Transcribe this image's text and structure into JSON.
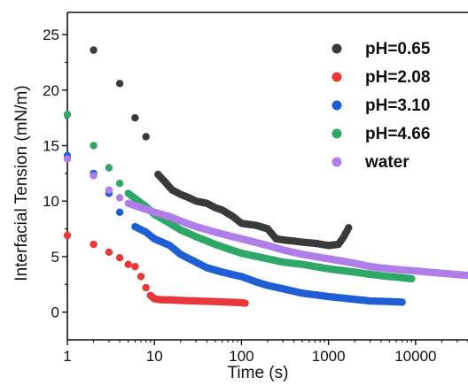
{
  "chart_data": {
    "type": "scatter",
    "title": "",
    "xlabel": "Time (s)",
    "ylabel": "Interfacial Tension (mN/m)",
    "xscale": "log",
    "xlim": [
      1,
      40000
    ],
    "ylim": [
      -2.5,
      27
    ],
    "x_ticks": [
      1,
      10,
      100,
      1000,
      10000
    ],
    "x_tick_labels": [
      "1",
      "10",
      "100",
      "1000",
      "10000"
    ],
    "y_ticks": [
      0,
      5,
      10,
      15,
      20,
      25
    ],
    "y_tick_labels": [
      "0",
      "5",
      "10",
      "15",
      "20",
      "25"
    ],
    "grid": false,
    "legend_position": "top-right",
    "series": [
      {
        "name": "pH=0.65",
        "color": "#3a3a3a",
        "x": [
          2,
          4,
          6,
          8,
          11,
          13,
          16,
          20,
          25,
          30,
          40,
          50,
          60,
          80,
          100,
          150,
          200,
          250,
          300,
          400,
          500,
          700,
          1000,
          1300,
          1500,
          1700
        ],
        "y": [
          23.6,
          20.6,
          17.5,
          15.8,
          12.4,
          11.8,
          11.0,
          10.6,
          10.3,
          10.0,
          9.8,
          9.4,
          9.2,
          8.6,
          8.0,
          7.8,
          7.5,
          6.6,
          6.5,
          6.4,
          6.3,
          6.2,
          6.0,
          6.1,
          6.8,
          7.6
        ]
      },
      {
        "name": "pH=2.08",
        "color": "#e8383a",
        "x": [
          1,
          2,
          3,
          4,
          5,
          6,
          7,
          8,
          9,
          10,
          12,
          15,
          20,
          30,
          50,
          70,
          100,
          110
        ],
        "y": [
          6.9,
          6.1,
          5.4,
          4.9,
          4.3,
          4.1,
          3.2,
          2.2,
          1.5,
          1.2,
          1.1,
          1.1,
          1.05,
          1.0,
          0.95,
          0.9,
          0.85,
          0.8
        ]
      },
      {
        "name": "pH=3.10",
        "color": "#1f5fd6",
        "x": [
          1,
          2,
          3,
          4,
          6,
          8,
          10,
          15,
          20,
          30,
          40,
          60,
          100,
          150,
          200,
          300,
          500,
          1000,
          2000,
          3000,
          5000,
          7000
        ],
        "y": [
          14.1,
          12.5,
          10.7,
          9.0,
          7.7,
          7.2,
          6.6,
          6.0,
          5.2,
          4.5,
          4.0,
          3.6,
          3.2,
          2.7,
          2.4,
          2.1,
          1.7,
          1.4,
          1.15,
          1.0,
          0.95,
          0.9
        ]
      },
      {
        "name": "pH=4.66",
        "color": "#2ea866",
        "x": [
          1,
          2,
          3,
          4,
          5,
          8,
          10,
          15,
          20,
          30,
          50,
          70,
          100,
          200,
          300,
          500,
          1000,
          2000,
          3000,
          5000,
          7000,
          9000
        ],
        "y": [
          17.8,
          15.0,
          13.0,
          11.6,
          10.7,
          9.5,
          8.8,
          8.0,
          7.4,
          6.8,
          6.1,
          5.7,
          5.3,
          4.8,
          4.5,
          4.3,
          3.9,
          3.6,
          3.4,
          3.2,
          3.1,
          3.0
        ]
      },
      {
        "name": "water",
        "color": "#b07ee8",
        "x": [
          1,
          2,
          3,
          4,
          5,
          7,
          10,
          15,
          20,
          30,
          50,
          70,
          100,
          200,
          300,
          500,
          1000,
          2000,
          3000,
          5000,
          10000,
          20000,
          40000
        ],
        "y": [
          13.8,
          12.3,
          11.0,
          10.3,
          9.8,
          9.4,
          9.0,
          8.6,
          8.2,
          7.7,
          7.2,
          6.9,
          6.6,
          6.0,
          5.6,
          5.2,
          4.8,
          4.4,
          4.1,
          3.9,
          3.7,
          3.5,
          3.3
        ]
      }
    ]
  }
}
